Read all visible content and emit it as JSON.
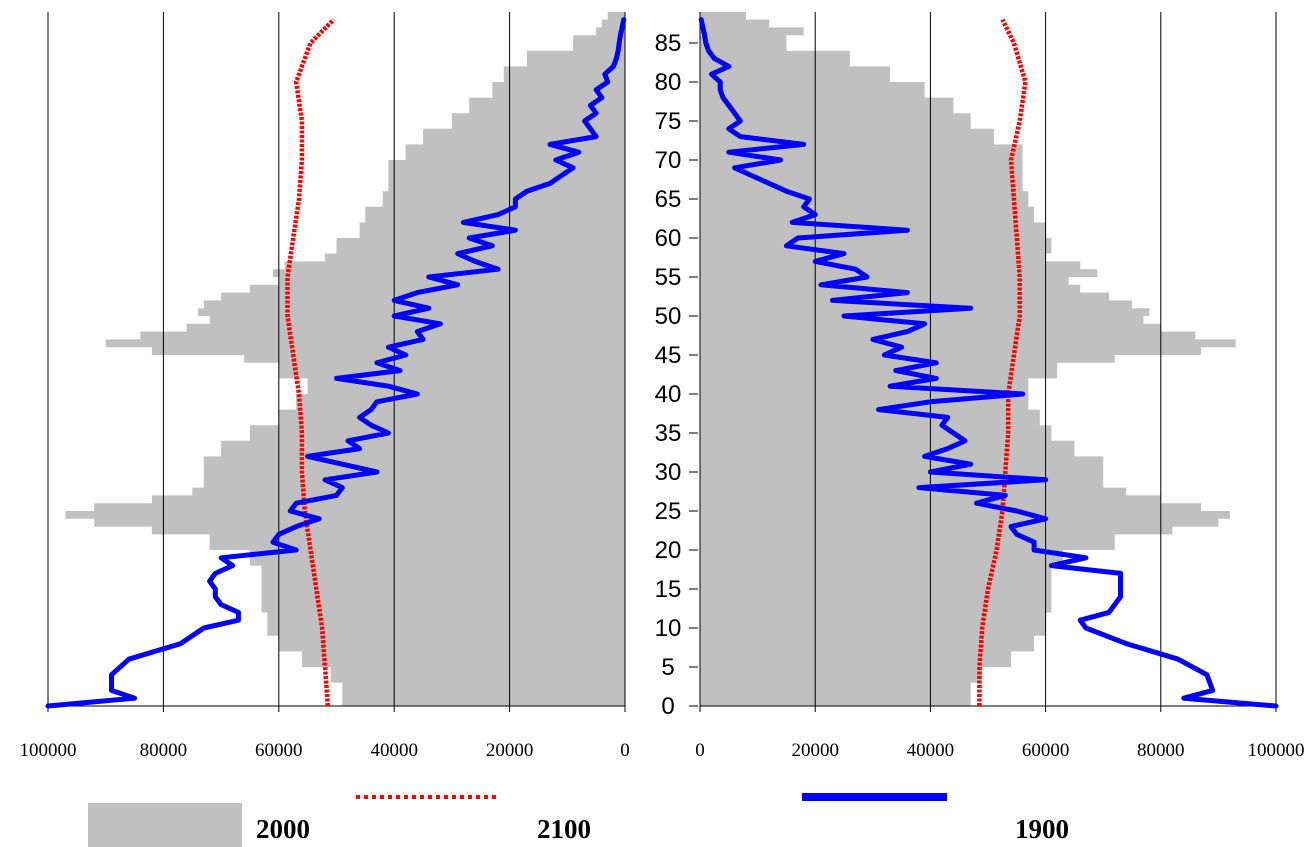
{
  "chart_data": {
    "type": "area",
    "title": "",
    "xlabel": "",
    "ylabel": "",
    "ylim": [
      0,
      88
    ],
    "grid": "vertical",
    "legend_position": "bottom",
    "colors": {
      "2000": "#c0c0c0",
      "2100": "#ff0000",
      "1900": "#0000ff",
      "grid": "#000000"
    },
    "panels": [
      {
        "side": "left",
        "xlim": [
          100000,
          0
        ],
        "x_ticks": [
          "100000",
          "80000",
          "60000",
          "40000",
          "20000",
          "0"
        ]
      },
      {
        "side": "right",
        "xlim": [
          0,
          100000
        ],
        "x_ticks": [
          "0",
          "20000",
          "40000",
          "60000",
          "80000",
          "100000"
        ]
      }
    ],
    "age_ticks": [
      "0",
      "5",
      "10",
      "15",
      "20",
      "25",
      "30",
      "35",
      "40",
      "45",
      "50",
      "55",
      "60",
      "65",
      "70",
      "75",
      "80",
      "85"
    ],
    "age_tick_values": [
      0,
      5,
      10,
      15,
      20,
      25,
      30,
      35,
      40,
      45,
      50,
      55,
      60,
      65,
      70,
      75,
      80,
      85
    ],
    "legend": [
      {
        "key": "2000",
        "label": "2000",
        "style": "gray-fill"
      },
      {
        "key": "2100",
        "label": "2100",
        "style": "red-dotted"
      },
      {
        "key": "1900",
        "label": "1900",
        "style": "blue-solid"
      }
    ],
    "series": [
      {
        "name": "2000",
        "side": "left",
        "style": "area",
        "ages": [
          0,
          3,
          5,
          7,
          9,
          12,
          15,
          17,
          18,
          20,
          22,
          23,
          24,
          25,
          26,
          27,
          28,
          30,
          32,
          34,
          36,
          38,
          40,
          42,
          44,
          45,
          46,
          47,
          48,
          49,
          50,
          51,
          52,
          53,
          54,
          55,
          56,
          57,
          58,
          60,
          62,
          64,
          66,
          68,
          70,
          72,
          74,
          76,
          78,
          80,
          82,
          84,
          86,
          87,
          88
        ],
        "values": [
          49000,
          51000,
          56000,
          60000,
          62000,
          63000,
          63000,
          63000,
          65000,
          72000,
          82000,
          92000,
          97000,
          92000,
          82000,
          75000,
          73000,
          73000,
          70000,
          65000,
          60000,
          57000,
          55000,
          60000,
          66000,
          82000,
          90000,
          84000,
          76000,
          72000,
          74000,
          73000,
          70000,
          65000,
          60000,
          61000,
          59000,
          52000,
          50000,
          46000,
          45000,
          42000,
          41000,
          41000,
          38000,
          35000,
          30000,
          27000,
          23000,
          21000,
          17000,
          9000,
          5000,
          4000,
          3000
        ]
      },
      {
        "name": "2000",
        "side": "right",
        "style": "area",
        "ages": [
          0,
          3,
          5,
          7,
          9,
          12,
          15,
          17,
          18,
          20,
          22,
          23,
          24,
          25,
          26,
          27,
          28,
          30,
          32,
          34,
          36,
          38,
          40,
          42,
          44,
          45,
          46,
          47,
          48,
          49,
          50,
          51,
          52,
          53,
          54,
          55,
          56,
          57,
          58,
          60,
          62,
          64,
          66,
          68,
          70,
          72,
          74,
          76,
          78,
          80,
          82,
          84,
          86,
          87,
          88
        ],
        "values": [
          47000,
          49000,
          54000,
          58000,
          60000,
          61000,
          61000,
          61000,
          63000,
          72000,
          82000,
          90000,
          92000,
          87000,
          80000,
          74000,
          70000,
          70000,
          65000,
          61000,
          59000,
          57000,
          57000,
          62000,
          72000,
          87000,
          93000,
          86000,
          80000,
          77000,
          78000,
          75000,
          71000,
          66000,
          64000,
          69000,
          66000,
          60000,
          61000,
          60000,
          58000,
          57000,
          56000,
          56000,
          56000,
          51000,
          47000,
          44000,
          39000,
          33000,
          26000,
          15000,
          18000,
          12000,
          8000
        ]
      },
      {
        "name": "2100",
        "side": "left",
        "style": "dotted",
        "ages": [
          0,
          5,
          10,
          15,
          20,
          25,
          30,
          35,
          40,
          45,
          50,
          55,
          60,
          65,
          70,
          75,
          80,
          85,
          88
        ],
        "values": [
          51500,
          52000,
          52500,
          53500,
          54500,
          55500,
          56000,
          56000,
          56500,
          57500,
          58500,
          58500,
          57500,
          56500,
          56000,
          56000,
          57000,
          54500,
          50500
        ]
      },
      {
        "name": "2100",
        "side": "right",
        "style": "dotted",
        "ages": [
          0,
          5,
          10,
          15,
          20,
          25,
          30,
          35,
          40,
          45,
          50,
          55,
          60,
          65,
          70,
          75,
          80,
          85,
          88
        ],
        "values": [
          48500,
          48500,
          49000,
          50000,
          51500,
          52500,
          53000,
          53500,
          53500,
          54500,
          55500,
          55500,
          55000,
          54500,
          54000,
          55500,
          56500,
          54500,
          52500
        ]
      },
      {
        "name": "1900",
        "side": "left",
        "style": "solid",
        "ages": [
          0,
          1,
          2,
          4,
          6,
          8,
          10,
          11,
          12,
          13,
          14,
          15,
          16,
          17,
          18,
          19,
          20,
          21,
          22,
          23,
          24,
          25,
          26,
          27,
          28,
          29,
          30,
          31,
          32,
          33,
          34,
          35,
          36,
          37,
          38,
          39,
          40,
          41,
          42,
          43,
          44,
          45,
          46,
          47,
          48,
          49,
          50,
          51,
          52,
          53,
          54,
          55,
          56,
          57,
          58,
          59,
          60,
          61,
          62,
          63,
          64,
          65,
          66,
          67,
          68,
          69,
          70,
          71,
          72,
          73,
          74,
          75,
          76,
          77,
          78,
          79,
          80,
          81,
          82,
          83,
          84,
          85,
          86,
          87,
          88
        ],
        "values": [
          100000,
          85000,
          89000,
          89000,
          86000,
          77000,
          73000,
          67000,
          67000,
          70000,
          71000,
          71000,
          72000,
          71000,
          68000,
          70000,
          57000,
          61000,
          60000,
          57000,
          53000,
          58000,
          57000,
          50000,
          49000,
          52000,
          43000,
          49000,
          55000,
          46000,
          48000,
          41000,
          44000,
          46000,
          44000,
          43000,
          36000,
          41000,
          50000,
          39000,
          43000,
          38000,
          41000,
          35000,
          36000,
          32000,
          40000,
          34000,
          40000,
          36000,
          29000,
          34000,
          22000,
          26000,
          29000,
          23000,
          27000,
          19000,
          28000,
          22000,
          19000,
          19000,
          17000,
          13000,
          11000,
          9000,
          12000,
          8000,
          13000,
          5000,
          6000,
          7000,
          5000,
          6000,
          4000,
          5000,
          3000,
          3500,
          2000,
          1500,
          1200,
          1000,
          800,
          500,
          200
        ]
      },
      {
        "name": "1900",
        "side": "right",
        "style": "solid",
        "ages": [
          0,
          1,
          2,
          4,
          6,
          8,
          10,
          11,
          12,
          13,
          14,
          15,
          16,
          17,
          18,
          19,
          20,
          21,
          22,
          23,
          24,
          25,
          26,
          27,
          28,
          29,
          30,
          31,
          32,
          33,
          34,
          35,
          36,
          37,
          38,
          39,
          40,
          41,
          42,
          43,
          44,
          45,
          46,
          47,
          48,
          49,
          50,
          51,
          52,
          53,
          54,
          55,
          56,
          57,
          58,
          59,
          60,
          61,
          62,
          63,
          64,
          65,
          66,
          67,
          68,
          69,
          70,
          71,
          72,
          73,
          74,
          75,
          76,
          77,
          78,
          79,
          80,
          81,
          82,
          83,
          84,
          85,
          86,
          87,
          88
        ],
        "values": [
          100000,
          84000,
          89000,
          88000,
          83000,
          74000,
          67000,
          66000,
          71000,
          72000,
          73000,
          73000,
          73000,
          73000,
          61000,
          67000,
          58000,
          58000,
          55000,
          54000,
          60000,
          55000,
          48000,
          53000,
          38000,
          60000,
          40000,
          47000,
          39000,
          43000,
          46000,
          44000,
          42000,
          43000,
          31000,
          40000,
          56000,
          33000,
          41000,
          34000,
          41000,
          32000,
          35000,
          30000,
          36000,
          39000,
          25000,
          47000,
          23000,
          36000,
          21000,
          29000,
          27000,
          20000,
          25000,
          15000,
          17000,
          36000,
          16000,
          20000,
          18000,
          19000,
          15000,
          12000,
          9000,
          6000,
          14000,
          5000,
          18000,
          7000,
          5000,
          7000,
          6000,
          5000,
          4000,
          3500,
          3500,
          2000,
          5000,
          2500,
          1500,
          1000,
          800,
          500,
          200
        ]
      }
    ]
  }
}
